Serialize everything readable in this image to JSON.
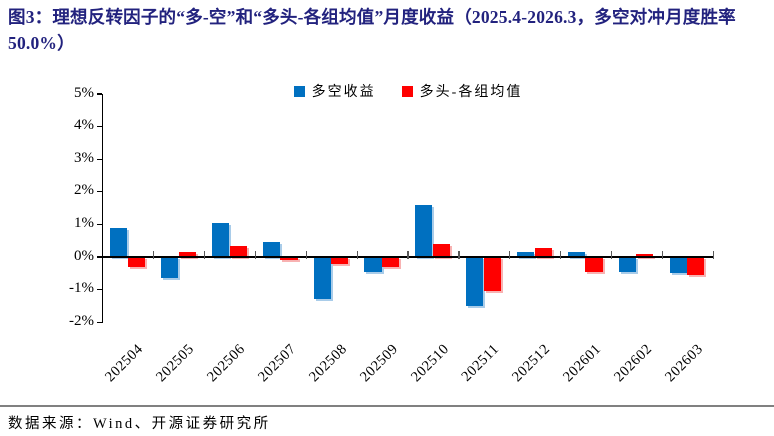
{
  "title": "图3：理想反转因子的“多-空”和“多头-各组均值”月度收益（2025.4-2026.3，多空对冲月度胜率 50.0%）",
  "footer": {
    "source_label": "数据来源：Wind、开源证券研究所"
  },
  "colors": {
    "title": "#22227e",
    "long_short_blue": "#0070c0",
    "long_minus_avg_red": "#ff0000",
    "axis": "#000000",
    "x_tick": "#595959",
    "separator_line": "#808080"
  },
  "chart_data": {
    "type": "bar",
    "title": "理想反转因子的“多-空”和“多头-各组均值”月度收益",
    "period": "2025.4-2026.3",
    "win_rate_note": "多空对冲月度胜率 50.0%",
    "categories": [
      "202504",
      "202505",
      "202506",
      "202507",
      "202508",
      "202509",
      "202510",
      "202511",
      "202512",
      "202601",
      "202602",
      "202603"
    ],
    "series": [
      {
        "name": "多空收益",
        "color": "#0070c0",
        "values": [
          0.9,
          -0.65,
          1.05,
          0.45,
          -1.3,
          -0.45,
          1.6,
          -1.5,
          0.15,
          0.15,
          -0.45,
          -0.5
        ]
      },
      {
        "name": "多头-各组均值",
        "color": "#ff0000",
        "values": [
          -0.3,
          0.15,
          0.35,
          -0.1,
          -0.2,
          -0.3,
          0.4,
          -1.05,
          0.28,
          -0.45,
          0.1,
          -0.55
        ]
      }
    ],
    "ylabel": "",
    "xlabel": "",
    "ylim": [
      -2,
      5
    ],
    "ytick_step": 1,
    "ytick_labels": [
      "5%",
      "4%",
      "3%",
      "2%",
      "1%",
      "0%",
      "-1%",
      "-2%"
    ],
    "legend_position": "top-center",
    "grid": false,
    "unit": "percent"
  }
}
